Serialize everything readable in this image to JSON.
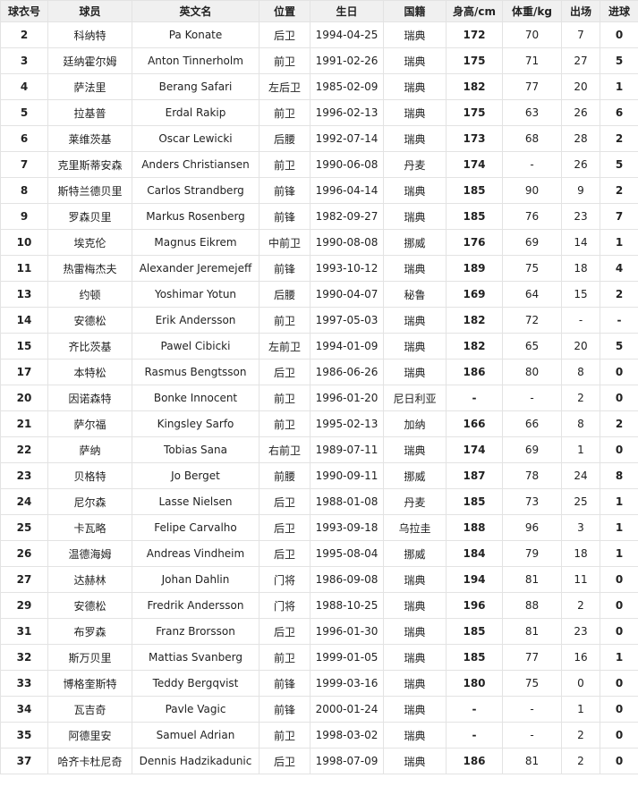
{
  "table": {
    "header": [
      "球衣号",
      "球员",
      "英文名",
      "位置",
      "生日",
      "国籍",
      "身高/cm",
      "体重/kg",
      "出场",
      "进球"
    ],
    "rows": [
      [
        "2",
        "科纳特",
        "Pa Konate",
        "后卫",
        "1994-04-25",
        "瑞典",
        "172",
        "70",
        "7",
        "0"
      ],
      [
        "3",
        "廷纳霍尔姆",
        "Anton Tinnerholm",
        "前卫",
        "1991-02-26",
        "瑞典",
        "175",
        "71",
        "27",
        "5"
      ],
      [
        "4",
        "萨法里",
        "Berang Safari",
        "左后卫",
        "1985-02-09",
        "瑞典",
        "182",
        "77",
        "20",
        "1"
      ],
      [
        "5",
        "拉基普",
        "Erdal Rakip",
        "前卫",
        "1996-02-13",
        "瑞典",
        "175",
        "63",
        "26",
        "6"
      ],
      [
        "6",
        "莱维茨基",
        "Oscar Lewicki",
        "后腰",
        "1992-07-14",
        "瑞典",
        "173",
        "68",
        "28",
        "2"
      ],
      [
        "7",
        "克里斯蒂安森",
        "Anders Christiansen",
        "前卫",
        "1990-06-08",
        "丹麦",
        "174",
        "-",
        "26",
        "5"
      ],
      [
        "8",
        "斯特兰德贝里",
        "Carlos Strandberg",
        "前锋",
        "1996-04-14",
        "瑞典",
        "185",
        "90",
        "9",
        "2"
      ],
      [
        "9",
        "罗森贝里",
        "Markus Rosenberg",
        "前锋",
        "1982-09-27",
        "瑞典",
        "185",
        "76",
        "23",
        "7"
      ],
      [
        "10",
        "埃克伦",
        "Magnus Eikrem",
        "中前卫",
        "1990-08-08",
        "挪威",
        "176",
        "69",
        "14",
        "1"
      ],
      [
        "11",
        "热雷梅杰夫",
        "Alexander Jeremejeff",
        "前锋",
        "1993-10-12",
        "瑞典",
        "189",
        "75",
        "18",
        "4"
      ],
      [
        "13",
        "约顿",
        "Yoshimar Yotun",
        "后腰",
        "1990-04-07",
        "秘鲁",
        "169",
        "64",
        "15",
        "2"
      ],
      [
        "14",
        "安德松",
        "Erik Andersson",
        "前卫",
        "1997-05-03",
        "瑞典",
        "182",
        "72",
        "-",
        "-"
      ],
      [
        "15",
        "齐比茨基",
        "Pawel Cibicki",
        "左前卫",
        "1994-01-09",
        "瑞典",
        "182",
        "65",
        "20",
        "5"
      ],
      [
        "17",
        "本特松",
        "Rasmus Bengtsson",
        "后卫",
        "1986-06-26",
        "瑞典",
        "186",
        "80",
        "8",
        "0"
      ],
      [
        "20",
        "因诺森特",
        "Bonke Innocent",
        "前卫",
        "1996-01-20",
        "尼日利亚",
        "-",
        "-",
        "2",
        "0"
      ],
      [
        "21",
        "萨尔福",
        "Kingsley Sarfo",
        "前卫",
        "1995-02-13",
        "加纳",
        "166",
        "66",
        "8",
        "2"
      ],
      [
        "22",
        "萨纳",
        "Tobias Sana",
        "右前卫",
        "1989-07-11",
        "瑞典",
        "174",
        "69",
        "1",
        "0"
      ],
      [
        "23",
        "贝格特",
        "Jo Berget",
        "前腰",
        "1990-09-11",
        "挪威",
        "187",
        "78",
        "24",
        "8"
      ],
      [
        "24",
        "尼尔森",
        "Lasse Nielsen",
        "后卫",
        "1988-01-08",
        "丹麦",
        "185",
        "73",
        "25",
        "1"
      ],
      [
        "25",
        "卡瓦略",
        "Felipe Carvalho",
        "后卫",
        "1993-09-18",
        "乌拉圭",
        "188",
        "96",
        "3",
        "1"
      ],
      [
        "26",
        "温德海姆",
        "Andreas Vindheim",
        "后卫",
        "1995-08-04",
        "挪威",
        "184",
        "79",
        "18",
        "1"
      ],
      [
        "27",
        "达赫林",
        "Johan Dahlin",
        "门将",
        "1986-09-08",
        "瑞典",
        "194",
        "81",
        "11",
        "0"
      ],
      [
        "29",
        "安德松",
        "Fredrik Andersson",
        "门将",
        "1988-10-25",
        "瑞典",
        "196",
        "88",
        "2",
        "0"
      ],
      [
        "31",
        "布罗森",
        "Franz Brorsson",
        "后卫",
        "1996-01-30",
        "瑞典",
        "185",
        "81",
        "23",
        "0"
      ],
      [
        "32",
        "斯万贝里",
        "Mattias Svanberg",
        "前卫",
        "1999-01-05",
        "瑞典",
        "185",
        "77",
        "16",
        "1"
      ],
      [
        "33",
        "博格奎斯特",
        "Teddy Bergqvist",
        "前锋",
        "1999-03-16",
        "瑞典",
        "180",
        "75",
        "0",
        "0"
      ],
      [
        "34",
        "瓦吉奇",
        "Pavle Vagic",
        "前锋",
        "2000-01-24",
        "瑞典",
        "-",
        "-",
        "1",
        "0"
      ],
      [
        "35",
        "阿德里安",
        "Samuel Adrian",
        "前卫",
        "1998-03-02",
        "瑞典",
        "-",
        "-",
        "2",
        "0"
      ],
      [
        "37",
        "哈齐卡杜尼奇",
        "Dennis Hadzikadunic",
        "后卫",
        "1998-07-09",
        "瑞典",
        "186",
        "81",
        "2",
        "0"
      ]
    ]
  }
}
